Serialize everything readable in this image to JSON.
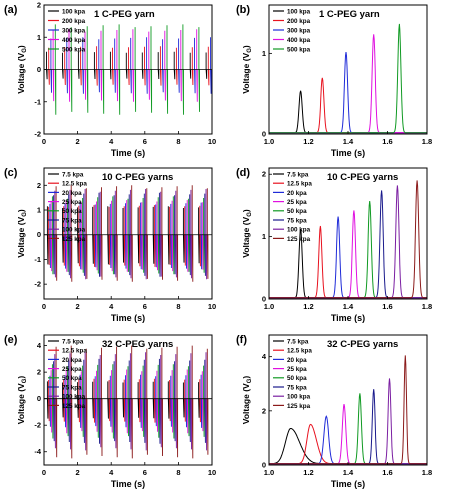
{
  "figure": {
    "panel_labels": [
      "(a)",
      "(b)",
      "(c)",
      "(d)",
      "(e)",
      "(f)"
    ]
  },
  "chart_data": [
    {
      "id": "a",
      "type": "line",
      "title": "1 C-PEG yarn",
      "xlabel": "Time (s)",
      "ylabel": "Voltage (V_G)",
      "xlim": [
        0,
        10
      ],
      "ylim": [
        -2,
        2
      ],
      "xticks": [
        0,
        2,
        4,
        6,
        8,
        10
      ],
      "yticks": [
        -2,
        -1,
        0,
        1,
        2
      ],
      "legend_position": "top-left",
      "pulse_times": [
        0.15,
        1.1,
        2.05,
        3.0,
        3.95,
        4.9,
        5.85,
        6.8,
        7.75,
        8.7,
        9.65
      ],
      "series": [
        {
          "name": "100 kpa",
          "color": "#000000",
          "peak": 0.55,
          "trough": -0.3
        },
        {
          "name": "200 kpa",
          "color": "#e8121f",
          "peak": 0.72,
          "trough": -0.5
        },
        {
          "name": "300 kpa",
          "color": "#1f2bd8",
          "peak": 1.0,
          "trough": -0.75
        },
        {
          "name": "400 kpa",
          "color": "#e010e0",
          "peak": 1.25,
          "trough": -1.0
        },
        {
          "name": "500 kpa",
          "color": "#109a23",
          "peak": 1.4,
          "trough": -1.4
        }
      ]
    },
    {
      "id": "b",
      "type": "line",
      "title": "1 C-PEG yarn",
      "xlabel": "Time (s)",
      "ylabel": "Voltage (V_G)",
      "xlim": [
        1.0,
        1.8
      ],
      "ylim": [
        0,
        1.6
      ],
      "xticks": [
        1.0,
        1.2,
        1.4,
        1.6,
        1.8
      ],
      "yticks": [
        0,
        1
      ],
      "legend_position": "top-left",
      "series": [
        {
          "name": "100 kpa",
          "color": "#000000",
          "peak_time": 1.16,
          "peak": 0.52
        },
        {
          "name": "200 kpa",
          "color": "#e8121f",
          "peak_time": 1.27,
          "peak": 0.68
        },
        {
          "name": "300 kpa",
          "color": "#1f2bd8",
          "peak_time": 1.39,
          "peak": 1.0
        },
        {
          "name": "400 kpa",
          "color": "#e010e0",
          "peak_time": 1.53,
          "peak": 1.22
        },
        {
          "name": "500 kpa",
          "color": "#109a23",
          "peak_time": 1.66,
          "peak": 1.35
        }
      ]
    },
    {
      "id": "c",
      "type": "line",
      "title": "10 C-PEG yarns",
      "xlabel": "Time (s)",
      "ylabel": "Voltage (V_G)",
      "xlim": [
        0,
        10
      ],
      "ylim": [
        -2.6,
        2.7
      ],
      "xticks": [
        0,
        2,
        4,
        6,
        8,
        10
      ],
      "yticks": [
        -2,
        -1,
        0,
        1,
        2
      ],
      "legend_position": "top-left",
      "pulse_times": [
        0.2,
        1.1,
        2.0,
        2.9,
        3.8,
        4.7,
        5.6,
        6.5,
        7.4,
        8.3,
        9.2
      ],
      "series": [
        {
          "name": "7.5 kpa",
          "color": "#000000",
          "peak": 1.15,
          "trough": -1.2
        },
        {
          "name": "12.5 kpa",
          "color": "#e8121f",
          "peak": 1.2,
          "trough": -1.3
        },
        {
          "name": "20 kpa",
          "color": "#1f2bd8",
          "peak": 1.3,
          "trough": -1.4
        },
        {
          "name": "25 kpa",
          "color": "#e010e0",
          "peak": 1.4,
          "trough": -1.5
        },
        {
          "name": "50 kpa",
          "color": "#109a23",
          "peak": 1.55,
          "trough": -1.6
        },
        {
          "name": "75 kpa",
          "color": "#1a1a8c",
          "peak": 1.7,
          "trough": -1.7
        },
        {
          "name": "100 kpa",
          "color": "#7b1fa2",
          "peak": 1.85,
          "trough": -1.8
        },
        {
          "name": "125 kpa",
          "color": "#8b1a1a",
          "peak": 2.0,
          "trough": -1.9
        }
      ]
    },
    {
      "id": "d",
      "type": "line",
      "title": "10 C-PEG yarns",
      "xlabel": "Time (s)",
      "ylabel": "Voltage (V_G)",
      "xlim": [
        1.0,
        1.8
      ],
      "ylim": [
        0,
        2.1
      ],
      "xticks": [
        1.0,
        1.2,
        1.4,
        1.6,
        1.8
      ],
      "yticks": [
        0,
        1,
        2
      ],
      "legend_position": "top-left",
      "series": [
        {
          "name": "7.5 kpa",
          "color": "#000000",
          "peak_time": 1.16,
          "peak": 1.1
        },
        {
          "name": "12.5 kpa",
          "color": "#e8121f",
          "peak_time": 1.26,
          "peak": 1.15
        },
        {
          "name": "20 kpa",
          "color": "#1f2bd8",
          "peak_time": 1.35,
          "peak": 1.3
        },
        {
          "name": "25 kpa",
          "color": "#e010e0",
          "peak_time": 1.43,
          "peak": 1.4
        },
        {
          "name": "50 kpa",
          "color": "#109a23",
          "peak_time": 1.51,
          "peak": 1.55
        },
        {
          "name": "75 kpa",
          "color": "#1a1a8c",
          "peak_time": 1.57,
          "peak": 1.72
        },
        {
          "name": "100 kpa",
          "color": "#7b1fa2",
          "peak_time": 1.65,
          "peak": 1.8
        },
        {
          "name": "125 kpa",
          "color": "#8b1a1a",
          "peak_time": 1.75,
          "peak": 1.88
        }
      ]
    },
    {
      "id": "e",
      "type": "line",
      "title": "32 C-PEG yarns",
      "xlabel": "Time (s)",
      "ylabel": "Voltage (V_G)",
      "xlim": [
        0,
        10
      ],
      "ylim": [
        -5,
        4.8
      ],
      "xticks": [
        0,
        2,
        4,
        6,
        8,
        10
      ],
      "yticks": [
        -4,
        -2,
        0,
        2,
        4
      ],
      "legend_position": "top-left",
      "pulse_times": [
        0.2,
        1.1,
        2.0,
        2.9,
        3.8,
        4.7,
        5.6,
        6.5,
        7.4,
        8.3,
        9.2
      ],
      "series": [
        {
          "name": "7.5 kpa",
          "color": "#000000",
          "peak": 1.3,
          "trough": -1.5
        },
        {
          "name": "12.5 kpa",
          "color": "#e8121f",
          "peak": 1.5,
          "trough": -1.8
        },
        {
          "name": "20 kpa",
          "color": "#1f2bd8",
          "peak": 1.8,
          "trough": -2.2
        },
        {
          "name": "25 kpa",
          "color": "#e010e0",
          "peak": 2.2,
          "trough": -2.6
        },
        {
          "name": "50 kpa",
          "color": "#109a23",
          "peak": 2.6,
          "trough": -3.0
        },
        {
          "name": "75 kpa",
          "color": "#1a1a8c",
          "peak": 3.0,
          "trough": -3.4
        },
        {
          "name": "100 kpa",
          "color": "#7b1fa2",
          "peak": 3.5,
          "trough": -3.9
        },
        {
          "name": "125 kpa",
          "color": "#8b1a1a",
          "peak": 4.0,
          "trough": -4.5
        }
      ]
    },
    {
      "id": "f",
      "type": "line",
      "title": "32 C-PEG yarns",
      "xlabel": "Time (s)",
      "ylabel": "Voltage (V_G)",
      "xlim": [
        1.0,
        1.8
      ],
      "ylim": [
        0,
        4.8
      ],
      "xticks": [
        1.0,
        1.2,
        1.4,
        1.6,
        1.8
      ],
      "yticks": [
        0,
        2,
        4
      ],
      "legend_position": "top-left",
      "series": [
        {
          "name": "7.5 kpa",
          "color": "#000000",
          "peak_time": 1.11,
          "peak": 1.3,
          "width": 0.045
        },
        {
          "name": "12.5 kpa",
          "color": "#e8121f",
          "peak_time": 1.21,
          "peak": 1.45,
          "width": 0.03
        },
        {
          "name": "20 kpa",
          "color": "#1f2bd8",
          "peak_time": 1.29,
          "peak": 1.75,
          "width": 0.012
        },
        {
          "name": "25 kpa",
          "color": "#e010e0",
          "peak_time": 1.38,
          "peak": 2.2,
          "width": 0.009
        },
        {
          "name": "50 kpa",
          "color": "#109a23",
          "peak_time": 1.46,
          "peak": 2.6,
          "width": 0.008
        },
        {
          "name": "75 kpa",
          "color": "#1a1a8c",
          "peak_time": 1.53,
          "peak": 2.75,
          "width": 0.007
        },
        {
          "name": "100 kpa",
          "color": "#7b1fa2",
          "peak_time": 1.61,
          "peak": 3.15,
          "width": 0.007
        },
        {
          "name": "125 kpa",
          "color": "#8b1a1a",
          "peak_time": 1.69,
          "peak": 4.0,
          "width": 0.006
        }
      ]
    }
  ]
}
